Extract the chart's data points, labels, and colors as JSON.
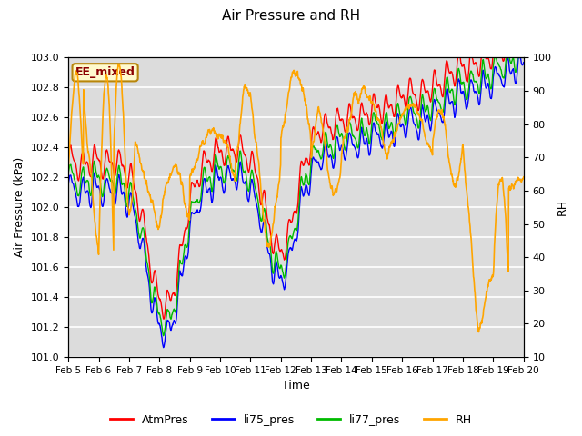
{
  "title": "Air Pressure and RH",
  "xlabel": "Time",
  "ylabel_left": "Air Pressure (kPa)",
  "ylabel_right": "RH",
  "annotation": "EE_mixed",
  "annotation_color": "#8B0000",
  "annotation_bg": "#FFFACD",
  "annotation_border": "#B8860B",
  "ylim_left": [
    101.0,
    103.0
  ],
  "ylim_right": [
    10,
    100
  ],
  "yticks_left": [
    101.0,
    101.2,
    101.4,
    101.6,
    101.8,
    102.0,
    102.2,
    102.4,
    102.6,
    102.8,
    103.0
  ],
  "yticks_right": [
    10,
    20,
    30,
    40,
    50,
    60,
    70,
    80,
    90,
    100
  ],
  "xtick_labels": [
    "Feb 5",
    "Feb 6",
    "Feb 7",
    "Feb 8",
    "Feb 9",
    "Feb 10",
    "Feb 11",
    "Feb 12",
    "Feb 13",
    "Feb 14",
    "Feb 15",
    "Feb 16",
    "Feb 17",
    "Feb 18",
    "Feb 19",
    "Feb 20"
  ],
  "colors": {
    "AtmPres": "#FF0000",
    "li75_pres": "#0000FF",
    "li77_pres": "#00BB00",
    "RH": "#FFA500"
  },
  "bg_color": "#DCDCDC",
  "grid_color": "#FFFFFF",
  "linewidth_pres": 1.0,
  "linewidth_rh": 1.2
}
